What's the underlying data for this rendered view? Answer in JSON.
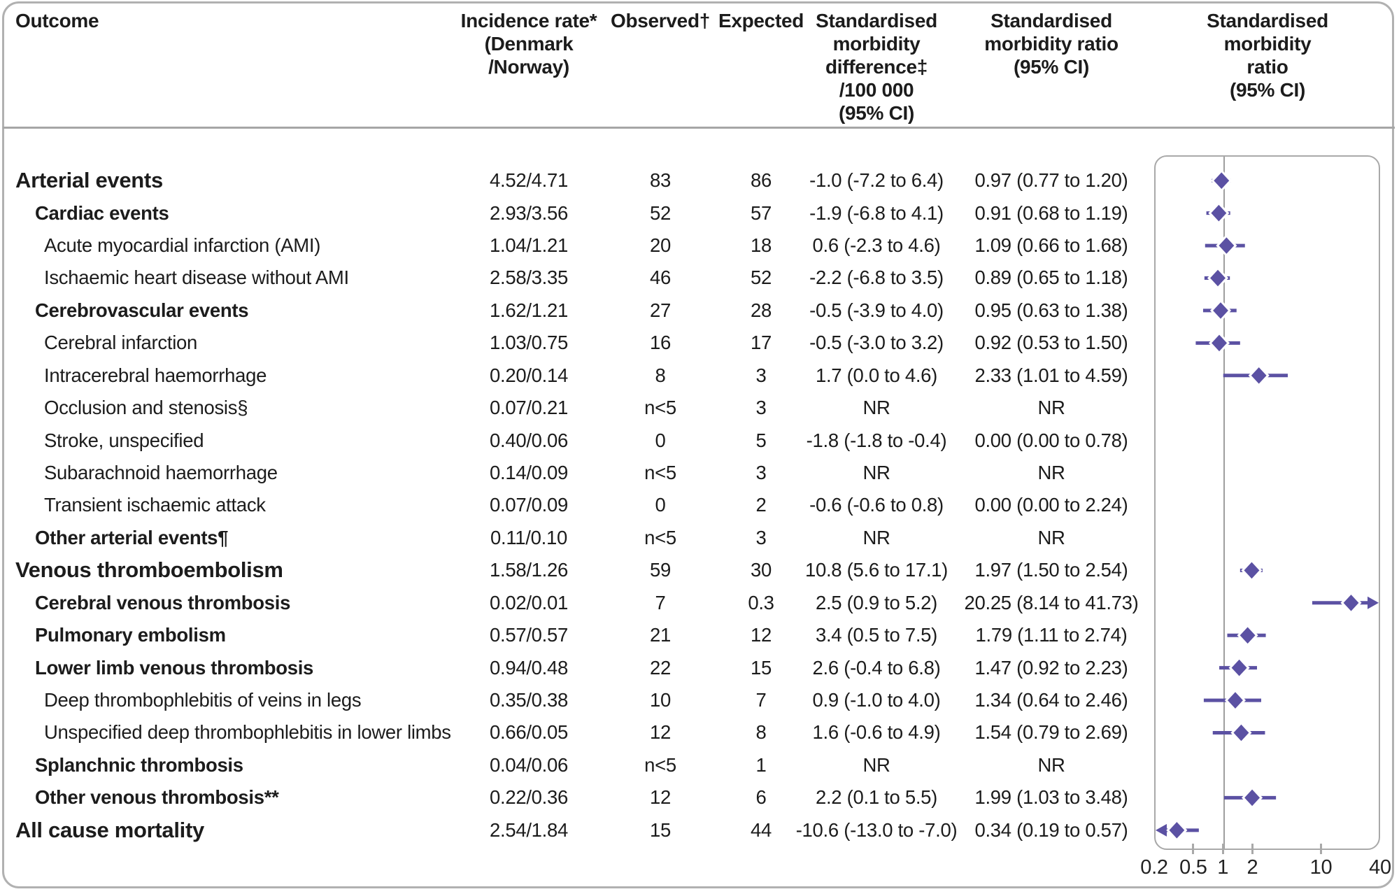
{
  "header": {
    "outcome": "Outcome",
    "incidence": "Incidence rate*\n(Denmark\n/Norway)",
    "observed": "Observed†",
    "expected": "Expected",
    "smd": "Standardised\nmorbidity\ndifference‡\n/100 000\n(95% CI)",
    "smr": "Standardised\nmorbidity ratio\n(95% CI)",
    "plot": "Standardised\nmorbidity ratio\n(95% CI)"
  },
  "rows": [
    {
      "label": "Arterial events",
      "level": 0,
      "incidence": "4.52/4.71",
      "observed": "83",
      "expected": "86",
      "smd": "-1.0 (-7.2 to 6.4)",
      "smr": "0.97 (0.77 to 1.20)",
      "est": 0.97,
      "lo": 0.77,
      "hi": 1.2,
      "clip": null
    },
    {
      "label": "Cardiac events",
      "level": 1,
      "incidence": "2.93/3.56",
      "observed": "52",
      "expected": "57",
      "smd": "-1.9 (-6.8 to 4.1)",
      "smr": "0.91 (0.68 to 1.19)",
      "est": 0.91,
      "lo": 0.68,
      "hi": 1.19,
      "clip": null
    },
    {
      "label": "Acute myocardial infarction (AMI)",
      "level": 2,
      "incidence": "1.04/1.21",
      "observed": "20",
      "expected": "18",
      "smd": "0.6 (-2.3 to 4.6)",
      "smr": "1.09 (0.66 to 1.68)",
      "est": 1.09,
      "lo": 0.66,
      "hi": 1.68,
      "clip": null
    },
    {
      "label": "Ischaemic heart disease without AMI",
      "level": 2,
      "incidence": "2.58/3.35",
      "observed": "46",
      "expected": "52",
      "smd": "-2.2 (-6.8 to 3.5)",
      "smr": "0.89 (0.65 to 1.18)",
      "est": 0.89,
      "lo": 0.65,
      "hi": 1.18,
      "clip": null
    },
    {
      "label": "Cerebrovascular events",
      "level": 1,
      "incidence": "1.62/1.21",
      "observed": "27",
      "expected": "28",
      "smd": "-0.5 (-3.9 to 4.0)",
      "smr": "0.95 (0.63 to 1.38)",
      "est": 0.95,
      "lo": 0.63,
      "hi": 1.38,
      "clip": null
    },
    {
      "label": "Cerebral infarction",
      "level": 2,
      "incidence": "1.03/0.75",
      "observed": "16",
      "expected": "17",
      "smd": "-0.5 (-3.0 to 3.2)",
      "smr": "0.92 (0.53 to 1.50)",
      "est": 0.92,
      "lo": 0.53,
      "hi": 1.5,
      "clip": null
    },
    {
      "label": "Intracerebral haemorrhage",
      "level": 2,
      "incidence": "0.20/0.14",
      "observed": "8",
      "expected": "3",
      "smd": "1.7 (0.0 to 4.6)",
      "smr": "2.33 (1.01 to 4.59)",
      "est": 2.33,
      "lo": 1.01,
      "hi": 4.59,
      "clip": null
    },
    {
      "label": "Occlusion and stenosis§",
      "level": 2,
      "incidence": "0.07/0.21",
      "observed": "n<5",
      "expected": "3",
      "smd": "NR",
      "smr": "NR",
      "est": null,
      "lo": null,
      "hi": null,
      "clip": null
    },
    {
      "label": "Stroke, unspecified",
      "level": 2,
      "incidence": "0.40/0.06",
      "observed": "0",
      "expected": "5",
      "smd": "-1.8 (-1.8 to -0.4)",
      "smr": "0.00 (0.00 to 0.78)",
      "est": null,
      "lo": null,
      "hi": null,
      "clip": null
    },
    {
      "label": "Subarachnoid haemorrhage",
      "level": 2,
      "incidence": "0.14/0.09",
      "observed": "n<5",
      "expected": "3",
      "smd": "NR",
      "smr": "NR",
      "est": null,
      "lo": null,
      "hi": null,
      "clip": null
    },
    {
      "label": "Transient ischaemic attack",
      "level": 2,
      "incidence": "0.07/0.09",
      "observed": "0",
      "expected": "2",
      "smd": "-0.6 (-0.6 to 0.8)",
      "smr": "0.00 (0.00 to 2.24)",
      "est": null,
      "lo": null,
      "hi": null,
      "clip": null
    },
    {
      "label": "Other arterial events¶",
      "level": 1,
      "incidence": "0.11/0.10",
      "observed": "n<5",
      "expected": "3",
      "smd": "NR",
      "smr": "NR",
      "est": null,
      "lo": null,
      "hi": null,
      "clip": null
    },
    {
      "label": "Venous thromboembolism",
      "level": 0,
      "incidence": "1.58/1.26",
      "observed": "59",
      "expected": "30",
      "smd": "10.8 (5.6 to 17.1)",
      "smr": "1.97 (1.50 to 2.54)",
      "est": 1.97,
      "lo": 1.5,
      "hi": 2.54,
      "clip": null
    },
    {
      "label": "Cerebral venous thrombosis",
      "level": 1,
      "incidence": "0.02/0.01",
      "observed": "7",
      "expected": "0.3",
      "smd": "2.5 (0.9 to 5.2)",
      "smr": "20.25 (8.14 to 41.73)",
      "est": 20.25,
      "lo": 8.14,
      "hi": 41.73,
      "clip": "right"
    },
    {
      "label": "Pulmonary embolism",
      "level": 1,
      "incidence": "0.57/0.57",
      "observed": "21",
      "expected": "12",
      "smd": "3.4 (0.5 to 7.5)",
      "smr": "1.79 (1.11 to 2.74)",
      "est": 1.79,
      "lo": 1.11,
      "hi": 2.74,
      "clip": null
    },
    {
      "label": "Lower limb venous thrombosis",
      "level": 1,
      "incidence": "0.94/0.48",
      "observed": "22",
      "expected": "15",
      "smd": "2.6 (-0.4 to 6.8)",
      "smr": "1.47 (0.92 to 2.23)",
      "est": 1.47,
      "lo": 0.92,
      "hi": 2.23,
      "clip": null
    },
    {
      "label": "Deep thrombophlebitis of veins in legs",
      "level": 2,
      "incidence": "0.35/0.38",
      "observed": "10",
      "expected": "7",
      "smd": "0.9 (-1.0 to 4.0)",
      "smr": "1.34 (0.64 to 2.46)",
      "est": 1.34,
      "lo": 0.64,
      "hi": 2.46,
      "clip": null
    },
    {
      "label": "Unspecified deep thrombophlebitis in lower limbs",
      "level": 2,
      "incidence": "0.66/0.05",
      "observed": "12",
      "expected": "8",
      "smd": "1.6 (-0.6 to 4.9)",
      "smr": "1.54 (0.79 to 2.69)",
      "est": 1.54,
      "lo": 0.79,
      "hi": 2.69,
      "clip": null
    },
    {
      "label": "Splanchnic thrombosis",
      "level": 1,
      "incidence": "0.04/0.06",
      "observed": "n<5",
      "expected": "1",
      "smd": "NR",
      "smr": "NR",
      "est": null,
      "lo": null,
      "hi": null,
      "clip": null
    },
    {
      "label": "Other venous thrombosis**",
      "level": 1,
      "incidence": "0.22/0.36",
      "observed": "12",
      "expected": "6",
      "smd": "2.2 (0.1 to 5.5)",
      "smr": "1.99 (1.03 to 3.48)",
      "est": 1.99,
      "lo": 1.03,
      "hi": 3.48,
      "clip": null
    },
    {
      "label": "All cause mortality",
      "level": 0,
      "incidence": "2.54/1.84",
      "observed": "15",
      "expected": "44",
      "smd": "-10.6 (-13.0 to -7.0)",
      "smr": "0.34 (0.19 to 0.57)",
      "est": 0.34,
      "lo": 0.19,
      "hi": 0.57,
      "clip": "left"
    }
  ],
  "axis": {
    "ticks": [
      {
        "label": "0.2",
        "value": 0.2,
        "mark": false
      },
      {
        "label": "0.5",
        "value": 0.5,
        "mark": true
      },
      {
        "label": "1",
        "value": 1,
        "mark": true
      },
      {
        "label": "2",
        "value": 2,
        "mark": true
      },
      {
        "label": "10",
        "value": 10,
        "mark": true
      },
      {
        "label": "40",
        "value": 40,
        "mark": false
      }
    ]
  },
  "colors": {
    "marker": "#5b51a3",
    "axis": "#a9a9a9",
    "reference_line": "#9e9e9e",
    "text": "#1c1c1c"
  },
  "chart_data": {
    "type": "scatter",
    "title": "Standardised morbidity ratio (95% CI)",
    "x_scale": "log",
    "x_range": [
      0.2,
      40
    ],
    "x_ticks": [
      0.2,
      0.5,
      1,
      2,
      10,
      40
    ],
    "reference_line": 1,
    "grid": false,
    "legend": "none",
    "series": [
      {
        "name": "Arterial events",
        "est": 0.97,
        "lo": 0.77,
        "hi": 1.2
      },
      {
        "name": "Cardiac events",
        "est": 0.91,
        "lo": 0.68,
        "hi": 1.19
      },
      {
        "name": "Acute myocardial infarction (AMI)",
        "est": 1.09,
        "lo": 0.66,
        "hi": 1.68
      },
      {
        "name": "Ischaemic heart disease without AMI",
        "est": 0.89,
        "lo": 0.65,
        "hi": 1.18
      },
      {
        "name": "Cerebrovascular events",
        "est": 0.95,
        "lo": 0.63,
        "hi": 1.38
      },
      {
        "name": "Cerebral infarction",
        "est": 0.92,
        "lo": 0.53,
        "hi": 1.5
      },
      {
        "name": "Intracerebral haemorrhage",
        "est": 2.33,
        "lo": 1.01,
        "hi": 4.59
      },
      {
        "name": "Occlusion and stenosis",
        "est": null,
        "lo": null,
        "hi": null
      },
      {
        "name": "Stroke, unspecified",
        "est": null,
        "lo": null,
        "hi": null
      },
      {
        "name": "Subarachnoid haemorrhage",
        "est": null,
        "lo": null,
        "hi": null
      },
      {
        "name": "Transient ischaemic attack",
        "est": null,
        "lo": null,
        "hi": null
      },
      {
        "name": "Other arterial events",
        "est": null,
        "lo": null,
        "hi": null
      },
      {
        "name": "Venous thromboembolism",
        "est": 1.97,
        "lo": 1.5,
        "hi": 2.54
      },
      {
        "name": "Cerebral venous thrombosis",
        "est": 20.25,
        "lo": 8.14,
        "hi": 41.73
      },
      {
        "name": "Pulmonary embolism",
        "est": 1.79,
        "lo": 1.11,
        "hi": 2.74
      },
      {
        "name": "Lower limb venous thrombosis",
        "est": 1.47,
        "lo": 0.92,
        "hi": 2.23
      },
      {
        "name": "Deep thrombophlebitis of veins in legs",
        "est": 1.34,
        "lo": 0.64,
        "hi": 2.46
      },
      {
        "name": "Unspecified deep thrombophlebitis in lower limbs",
        "est": 1.54,
        "lo": 0.79,
        "hi": 2.69
      },
      {
        "name": "Splanchnic thrombosis",
        "est": null,
        "lo": null,
        "hi": null
      },
      {
        "name": "Other venous thrombosis",
        "est": 1.99,
        "lo": 1.03,
        "hi": 3.48
      },
      {
        "name": "All cause mortality",
        "est": 0.34,
        "lo": 0.19,
        "hi": 0.57
      }
    ]
  }
}
